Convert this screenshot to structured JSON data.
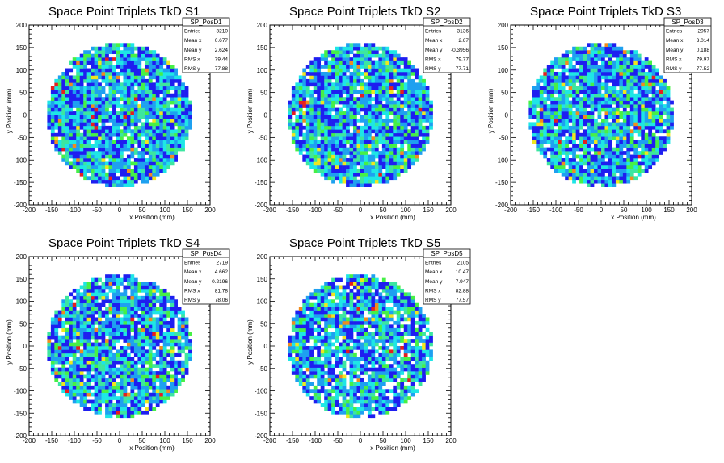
{
  "page": {
    "background": "#ffffff"
  },
  "colormap": [
    "#1e1ef0",
    "#1ea0f0",
    "#1ee6e6",
    "#3ce6a0",
    "#46f046",
    "#f0e61e",
    "#f08c1e",
    "#e61e1e"
  ],
  "chart_data": [
    {
      "type": "heatmap",
      "title": "Space Point Triplets TkD S1",
      "xlabel": "x Position (mm)",
      "ylabel": "y Position (mm)",
      "xlim": [
        -200,
        200
      ],
      "ylim": [
        -200,
        200
      ],
      "xticks": [
        -200,
        -150,
        -100,
        -50,
        0,
        50,
        100,
        150,
        200
      ],
      "yticks": [
        -200,
        -150,
        -100,
        -50,
        0,
        50,
        100,
        150,
        200
      ],
      "fill_radius_mm": 160,
      "bin_width_mm": 8,
      "stats": {
        "name": "SP_PosD1",
        "rows": [
          [
            "Entries",
            "3210"
          ],
          [
            "Mean x",
            "0.677"
          ],
          [
            "Mean y",
            "2.624"
          ],
          [
            "RMS x",
            "79.44"
          ],
          [
            "RMS y",
            "77.88"
          ]
        ]
      }
    },
    {
      "type": "heatmap",
      "title": "Space Point Triplets TkD S2",
      "xlabel": "x Position (mm)",
      "ylabel": "y Position (mm)",
      "xlim": [
        -200,
        200
      ],
      "ylim": [
        -200,
        200
      ],
      "xticks": [
        -200,
        -150,
        -100,
        -50,
        0,
        50,
        100,
        150,
        200
      ],
      "yticks": [
        -200,
        -150,
        -100,
        -50,
        0,
        50,
        100,
        150,
        200
      ],
      "fill_radius_mm": 160,
      "bin_width_mm": 8,
      "stats": {
        "name": "SP_PosD2",
        "rows": [
          [
            "Entries",
            "3136"
          ],
          [
            "Mean x",
            "2.67"
          ],
          [
            "Mean y",
            "-0.3956"
          ],
          [
            "RMS x",
            "79.77"
          ],
          [
            "RMS y",
            "77.71"
          ]
        ]
      }
    },
    {
      "type": "heatmap",
      "title": "Space Point Triplets TkD S3",
      "xlabel": "x Position (mm)",
      "ylabel": "y Position (mm)",
      "xlim": [
        -200,
        200
      ],
      "ylim": [
        -200,
        200
      ],
      "xticks": [
        -200,
        -150,
        -100,
        -50,
        0,
        50,
        100,
        150,
        200
      ],
      "yticks": [
        -200,
        -150,
        -100,
        -50,
        0,
        50,
        100,
        150,
        200
      ],
      "fill_radius_mm": 160,
      "bin_width_mm": 8,
      "stats": {
        "name": "SP_PosD3",
        "rows": [
          [
            "Entries",
            "2957"
          ],
          [
            "Mean x",
            "3.014"
          ],
          [
            "Mean y",
            "0.188"
          ],
          [
            "RMS x",
            "79.97"
          ],
          [
            "RMS y",
            "77.52"
          ]
        ]
      }
    },
    {
      "type": "heatmap",
      "title": "Space Point Triplets TkD S4",
      "xlabel": "x Position (mm)",
      "ylabel": "y Position (mm)",
      "xlim": [
        -200,
        200
      ],
      "ylim": [
        -200,
        200
      ],
      "xticks": [
        -200,
        -150,
        -100,
        -50,
        0,
        50,
        100,
        150,
        200
      ],
      "yticks": [
        -200,
        -150,
        -100,
        -50,
        0,
        50,
        100,
        150,
        200
      ],
      "fill_radius_mm": 160,
      "bin_width_mm": 8,
      "stats": {
        "name": "SP_PosD4",
        "rows": [
          [
            "Entries",
            "2719"
          ],
          [
            "Mean x",
            "4.662"
          ],
          [
            "Mean y",
            "0.2196"
          ],
          [
            "RMS x",
            "81.78"
          ],
          [
            "RMS y",
            "78.06"
          ]
        ]
      }
    },
    {
      "type": "heatmap",
      "title": "Space Point Triplets TkD S5",
      "xlabel": "x Position (mm)",
      "ylabel": "y Position (mm)",
      "xlim": [
        -200,
        200
      ],
      "ylim": [
        -200,
        200
      ],
      "xticks": [
        -200,
        -150,
        -100,
        -50,
        0,
        50,
        100,
        150,
        200
      ],
      "yticks": [
        -200,
        -150,
        -100,
        -50,
        0,
        50,
        100,
        150,
        200
      ],
      "fill_radius_mm": 160,
      "bin_width_mm": 8,
      "stats": {
        "name": "SP_PosD5",
        "rows": [
          [
            "Entries",
            "2105"
          ],
          [
            "Mean x",
            "10.47"
          ],
          [
            "Mean y",
            "-7.947"
          ],
          [
            "RMS x",
            "82.88"
          ],
          [
            "RMS y",
            "77.57"
          ]
        ]
      }
    }
  ]
}
